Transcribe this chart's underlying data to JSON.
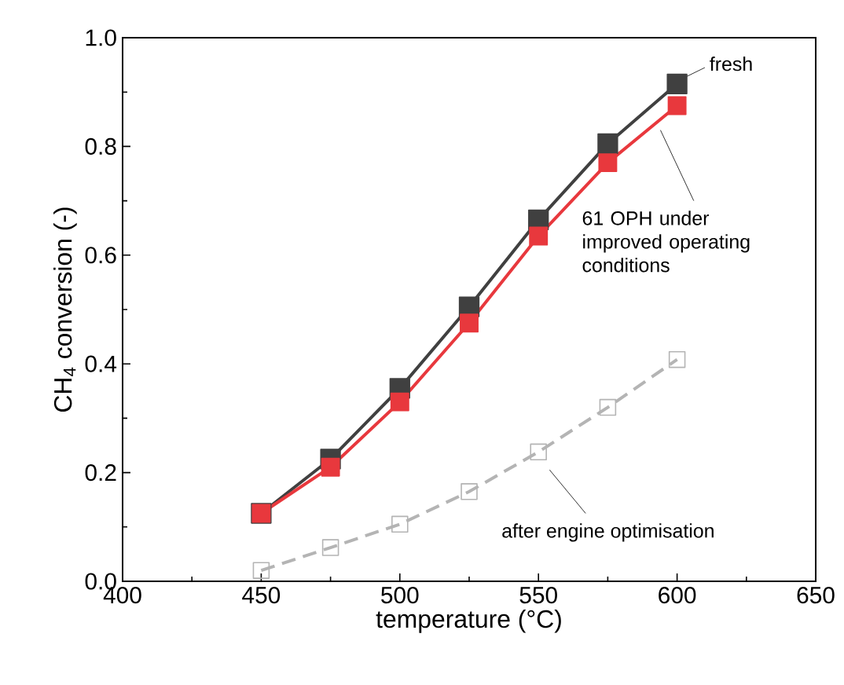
{
  "chart_data": {
    "type": "line",
    "xlabel": "temperature  (°C)",
    "ylabel": "CH$_{4}$ conversion (-)",
    "x": [
      450,
      475,
      500,
      525,
      550,
      575,
      600
    ],
    "series": [
      {
        "name": "fresh",
        "color": "#404040",
        "values": [
          0.125,
          0.225,
          0.355,
          0.505,
          0.665,
          0.805,
          0.915
        ],
        "line_style": "solid"
      },
      {
        "name": "61 OPH under improved operating conditions",
        "color": "#e8383d",
        "values": [
          0.125,
          0.21,
          0.33,
          0.475,
          0.635,
          0.77,
          0.875
        ],
        "line_style": "solid"
      },
      {
        "name": "after engine optimisation",
        "color": "#b4b4b4",
        "values": [
          0.02,
          0.062,
          0.105,
          0.165,
          0.238,
          0.32,
          0.408
        ],
        "line_style": "dashed"
      }
    ],
    "xlim": [
      400,
      650
    ],
    "xticks": [
      400,
      450,
      500,
      550,
      600,
      650
    ],
    "ylim": [
      0,
      1
    ],
    "yticks": [
      {
        "value": 0,
        "label": "0.0"
      },
      {
        "value": 0.2,
        "label": "0.2"
      },
      {
        "value": 0.4,
        "label": "0.4"
      },
      {
        "value": 0.6,
        "label": "0.6"
      },
      {
        "value": 0.8,
        "label": "0.8"
      },
      {
        "value": 1,
        "label": "1.0"
      }
    ],
    "marker": "square",
    "grid": false,
    "legend": false
  }
}
